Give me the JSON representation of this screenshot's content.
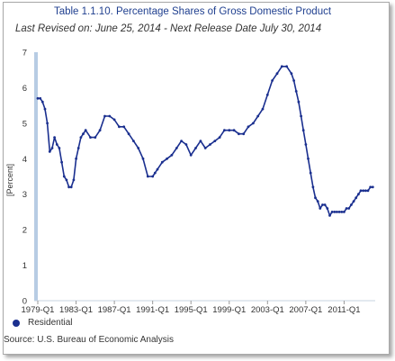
{
  "header": {
    "title": "Table 1.1.10. Percentage Shares of Gross Domestic Product",
    "subtitle": "Last Revised on: June 25, 2014 - Next Release Date July 30, 2014"
  },
  "footer": {
    "source": "Source: U.S. Bureau of Economic Analysis"
  },
  "chart_data": {
    "type": "line",
    "title": "Table 1.1.10. Percentage Shares of Gross Domestic Product",
    "xlabel": "",
    "ylabel": "[Percent]",
    "ylim": [
      0,
      7
    ],
    "yticks": [
      0,
      1,
      2,
      3,
      4,
      5,
      6,
      7
    ],
    "xticks": [
      "1979-Q1",
      "1983-Q1",
      "1987-Q1",
      "1991-Q1",
      "1995-Q1",
      "1999-Q1",
      "2003-Q1",
      "2007-Q1",
      "2011-Q1"
    ],
    "legend_position": "bottom-left",
    "grid": false,
    "series": [
      {
        "name": "Residential",
        "color": "#1a2f8f",
        "x": [
          1979.0,
          1979.25,
          1979.5,
          1979.75,
          1980.0,
          1980.25,
          1980.5,
          1980.75,
          1981.0,
          1981.25,
          1981.5,
          1981.75,
          1982.0,
          1982.25,
          1982.5,
          1982.75,
          1983.0,
          1983.25,
          1983.5,
          1983.75,
          1984.0,
          1984.5,
          1985.0,
          1985.5,
          1986.0,
          1986.5,
          1987.0,
          1987.5,
          1988.0,
          1988.5,
          1989.0,
          1989.5,
          1990.0,
          1990.5,
          1991.0,
          1991.25,
          1991.5,
          1992.0,
          1992.5,
          1993.0,
          1993.5,
          1994.0,
          1994.5,
          1995.0,
          1995.5,
          1996.0,
          1996.5,
          1997.0,
          1997.5,
          1998.0,
          1998.5,
          1999.0,
          1999.5,
          2000.0,
          2000.5,
          2001.0,
          2001.5,
          2002.0,
          2002.5,
          2003.0,
          2003.5,
          2004.0,
          2004.5,
          2005.0,
          2005.5,
          2005.75,
          2006.0,
          2006.25,
          2006.5,
          2006.75,
          2007.0,
          2007.25,
          2007.5,
          2007.75,
          2008.0,
          2008.25,
          2008.5,
          2008.75,
          2009.0,
          2009.25,
          2009.5,
          2009.75,
          2010.0,
          2010.25,
          2010.5,
          2010.75,
          2011.0,
          2011.25,
          2011.5,
          2011.75,
          2012.0,
          2012.25,
          2012.5,
          2012.75,
          2013.0,
          2013.25,
          2013.5,
          2013.75,
          2014.0
        ],
        "values": [
          5.7,
          5.7,
          5.6,
          5.4,
          5.0,
          4.2,
          4.3,
          4.6,
          4.4,
          4.3,
          3.9,
          3.5,
          3.4,
          3.2,
          3.2,
          3.4,
          4.0,
          4.3,
          4.6,
          4.7,
          4.8,
          4.6,
          4.6,
          4.8,
          5.2,
          5.2,
          5.1,
          4.9,
          4.9,
          4.7,
          4.5,
          4.3,
          4.0,
          3.5,
          3.5,
          3.6,
          3.7,
          3.9,
          4.0,
          4.1,
          4.3,
          4.5,
          4.4,
          4.1,
          4.3,
          4.5,
          4.3,
          4.4,
          4.5,
          4.6,
          4.8,
          4.8,
          4.8,
          4.7,
          4.7,
          4.9,
          5.0,
          5.2,
          5.4,
          5.8,
          6.2,
          6.4,
          6.6,
          6.6,
          6.4,
          6.2,
          5.9,
          5.6,
          5.2,
          4.8,
          4.4,
          4.0,
          3.6,
          3.2,
          2.9,
          2.8,
          2.6,
          2.7,
          2.7,
          2.6,
          2.4,
          2.5,
          2.5,
          2.5,
          2.5,
          2.5,
          2.5,
          2.6,
          2.6,
          2.7,
          2.8,
          2.9,
          3.0,
          3.1,
          3.1,
          3.1,
          3.1,
          3.2,
          3.2
        ]
      }
    ]
  }
}
